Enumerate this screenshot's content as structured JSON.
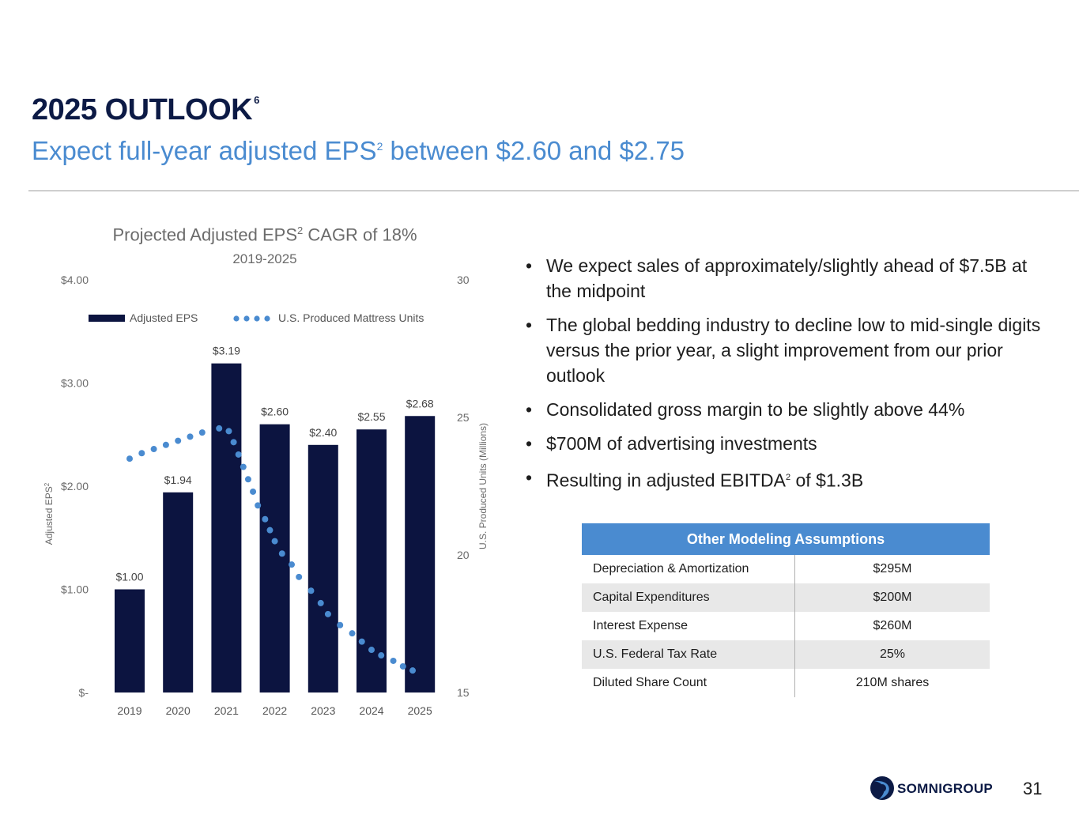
{
  "header": {
    "title": "2025 OUTLOOK",
    "title_sup": "6",
    "subtitle_part1": "Expect full-year adjusted EPS",
    "subtitle_sup": "2",
    "subtitle_part2": " between $2.60 and $2.75"
  },
  "chart_data": {
    "type": "bar",
    "title_part1": "Projected Adjusted EPS",
    "title_sup": "2",
    "title_part2": " CAGR of 18%",
    "subtitle": "2019-2025",
    "categories": [
      "2019",
      "2020",
      "2021",
      "2022",
      "2023",
      "2024",
      "2025"
    ],
    "ylabel": "Adjusted EPS",
    "ylabel_sup": "2",
    "y2label": "U.S. Produced Units (Millions)",
    "ylim": [
      0,
      4
    ],
    "y2lim": [
      15,
      30
    ],
    "yticks": [
      "$-",
      "$1.00",
      "$2.00",
      "$3.00",
      "$4.00"
    ],
    "y2ticks": [
      "15",
      "20",
      "25",
      "30"
    ],
    "legend_placement": "top",
    "grid": false,
    "series": [
      {
        "name": "Adjusted EPS",
        "type": "bar",
        "color": "#0c1440",
        "values": [
          1.0,
          1.94,
          3.19,
          2.6,
          2.4,
          2.55,
          2.68
        ],
        "labels": [
          "$1.00",
          "$1.94",
          "$3.19",
          "$2.60",
          "$2.40",
          "$2.55",
          "$2.68"
        ]
      },
      {
        "name": "U.S. Produced Mattress Units",
        "type": "dotted-line",
        "axis": "secondary",
        "color": "#4a8bd0",
        "x": [
          2019.0,
          2019.25,
          2019.5,
          2019.75,
          2020.0,
          2020.25,
          2020.5,
          2020.85,
          2021.05,
          2021.15,
          2021.25,
          2021.35,
          2021.45,
          2021.55,
          2021.65,
          2021.8,
          2021.9,
          2022.0,
          2022.15,
          2022.35,
          2022.5,
          2022.75,
          2022.95,
          2023.1,
          2023.35,
          2023.6,
          2023.8,
          2024.0,
          2024.2,
          2024.45,
          2024.65,
          2024.85
        ],
        "values": [
          23.5,
          23.7,
          23.85,
          24.0,
          24.15,
          24.3,
          24.45,
          24.6,
          24.5,
          24.1,
          23.65,
          23.2,
          22.75,
          22.3,
          21.8,
          21.3,
          20.9,
          20.5,
          20.05,
          19.65,
          19.2,
          18.7,
          18.25,
          17.85,
          17.45,
          17.15,
          16.85,
          16.55,
          16.35,
          16.15,
          15.95,
          15.8
        ]
      }
    ]
  },
  "bullets": [
    {
      "text": "We expect sales of approximately/slightly ahead of $7.5B at the midpoint"
    },
    {
      "text": "The global bedding industry to decline low to mid-single digits versus the prior year, a slight improvement from our prior outlook"
    },
    {
      "text": "Consolidated gross margin to be slightly above 44%"
    },
    {
      "text": "$700M of advertising investments"
    },
    {
      "text_part1": "Resulting in adjusted EBITDA",
      "sup": "2",
      "text_part2": " of $1.3B"
    }
  ],
  "assumptions": {
    "header": "Other Modeling Assumptions",
    "rows": [
      {
        "label": "Depreciation & Amortization",
        "value": "$295M"
      },
      {
        "label": "Capital Expenditures",
        "value": "$200M"
      },
      {
        "label": "Interest Expense",
        "value": "$260M"
      },
      {
        "label": "U.S. Federal Tax Rate",
        "value": "25%"
      },
      {
        "label": "Diluted Share Count",
        "value": "210M shares"
      }
    ]
  },
  "footer": {
    "logo_text": "SOMNIGROUP",
    "page_number": "31"
  },
  "colors": {
    "navy": "#0c1a45",
    "accent_blue": "#4a8bd0",
    "bar_navy": "#0c1440"
  }
}
